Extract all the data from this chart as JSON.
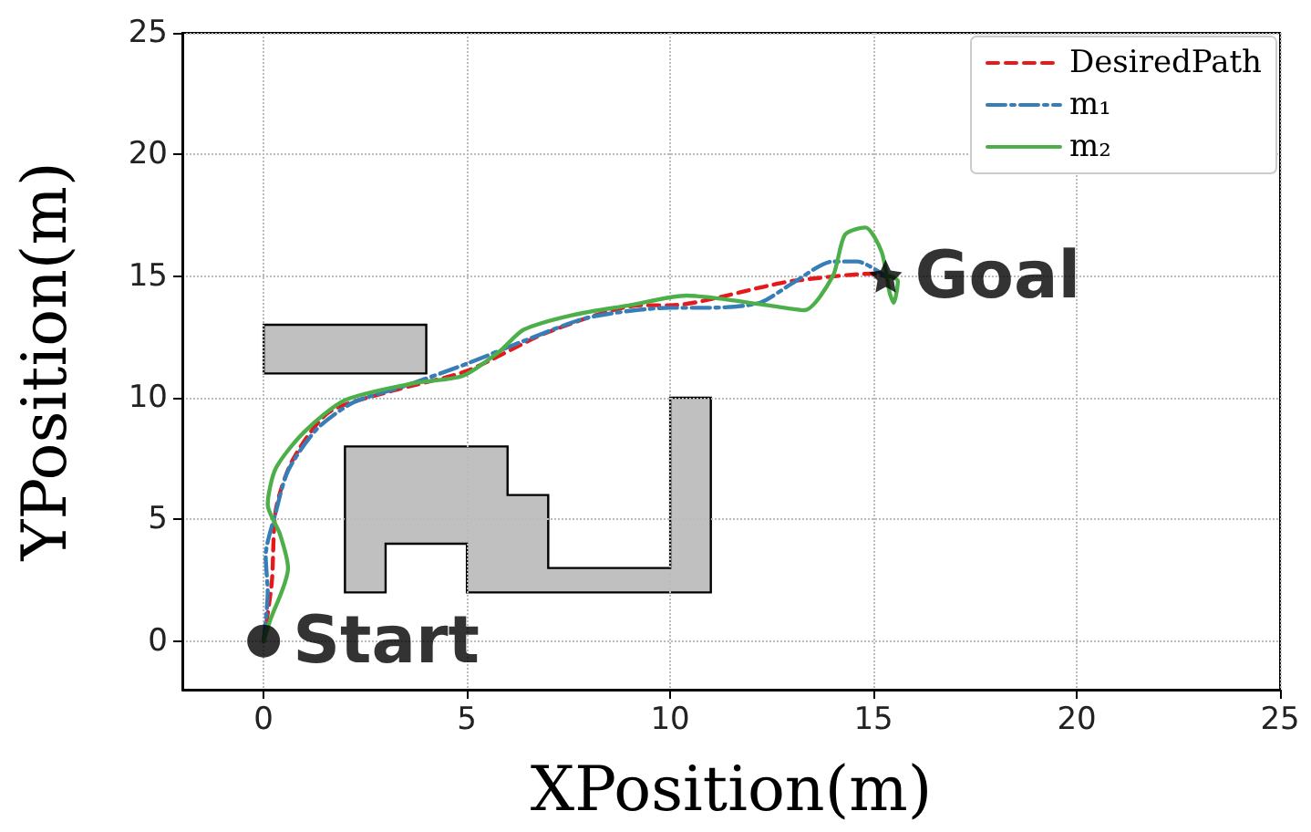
{
  "chart_data": {
    "type": "line",
    "xlabel": "XPosition(m)",
    "ylabel": "YPosition(m)",
    "xlim": [
      -2,
      25
    ],
    "ylim": [
      -2,
      25
    ],
    "xticks": [
      0,
      5,
      10,
      15,
      20,
      25
    ],
    "yticks": [
      0,
      5,
      10,
      15,
      20,
      25
    ],
    "grid": true,
    "legend": "top right",
    "marker": "none",
    "annotations": [
      {
        "text": "Start",
        "x": 0,
        "y": 0
      },
      {
        "text": "Goal",
        "x": 15.3,
        "y": 15
      }
    ],
    "series": [
      {
        "name": "DesiredPath",
        "color": "#e41a1c",
        "line_style": "dashed",
        "x": [
          0,
          0.2,
          0.3,
          0.7,
          1.6,
          3.2,
          5,
          7,
          9.3,
          10,
          12.4,
          13,
          15,
          15.3
        ],
        "values": [
          0,
          2.4,
          5.4,
          7.4,
          9.4,
          10.3,
          11.1,
          12.7,
          13.8,
          13.8,
          14.6,
          14.8,
          15.1,
          15
        ]
      },
      {
        "name": "m₁",
        "color": "#377eb8",
        "line_style": "dashdot",
        "x": [
          0,
          0.1,
          0.05,
          0.3,
          0.6,
          1.3,
          2.2,
          3.5,
          5,
          6.5,
          8,
          10,
          11,
          12.2,
          13,
          14,
          14.6,
          15.3
        ],
        "values": [
          0,
          2,
          3.5,
          5.3,
          7,
          8.7,
          9.8,
          10.5,
          11.4,
          12.4,
          13.3,
          13.7,
          13.7,
          13.9,
          14.7,
          15.6,
          15.6,
          15
        ]
      },
      {
        "name": "m₂",
        "color": "#4daf4a",
        "line_style": "solid",
        "x": [
          0,
          0.15,
          0.6,
          0.4,
          0.1,
          0.3,
          1,
          2,
          3.7,
          4.9,
          5.8,
          6.4,
          7.6,
          9,
          10.4,
          12.4,
          13.3,
          14,
          14.3,
          14.8,
          15.2,
          15.4,
          15.5,
          15.6,
          15.4
        ],
        "values": [
          0,
          0.8,
          3,
          4.4,
          5.6,
          7.1,
          8.6,
          9.9,
          10.6,
          10.9,
          11.9,
          12.8,
          13.4,
          13.8,
          14.2,
          13.8,
          13.6,
          15,
          16.7,
          17,
          16,
          14.3,
          13.9,
          14.8,
          15
        ]
      },
      {
        "type": "scatter",
        "color": "#000000",
        "marker": "circle",
        "x": [
          0
        ],
        "values": [
          0
        ]
      },
      {
        "type": "scatter",
        "color": "#000000",
        "marker": "star",
        "x": [
          15.3
        ],
        "values": [
          15
        ]
      }
    ]
  }
}
